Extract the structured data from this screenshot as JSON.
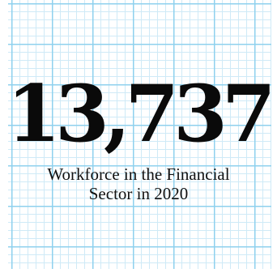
{
  "stat": {
    "value": "13,737",
    "caption_line1": "Workforce in the Financial",
    "caption_line2": "Sector in 2020"
  },
  "colors": {
    "grid_major": "#8fd1ee",
    "grid_minor": "#cfeaf7",
    "text": "#0a0a0a",
    "background": "#ffffff"
  }
}
